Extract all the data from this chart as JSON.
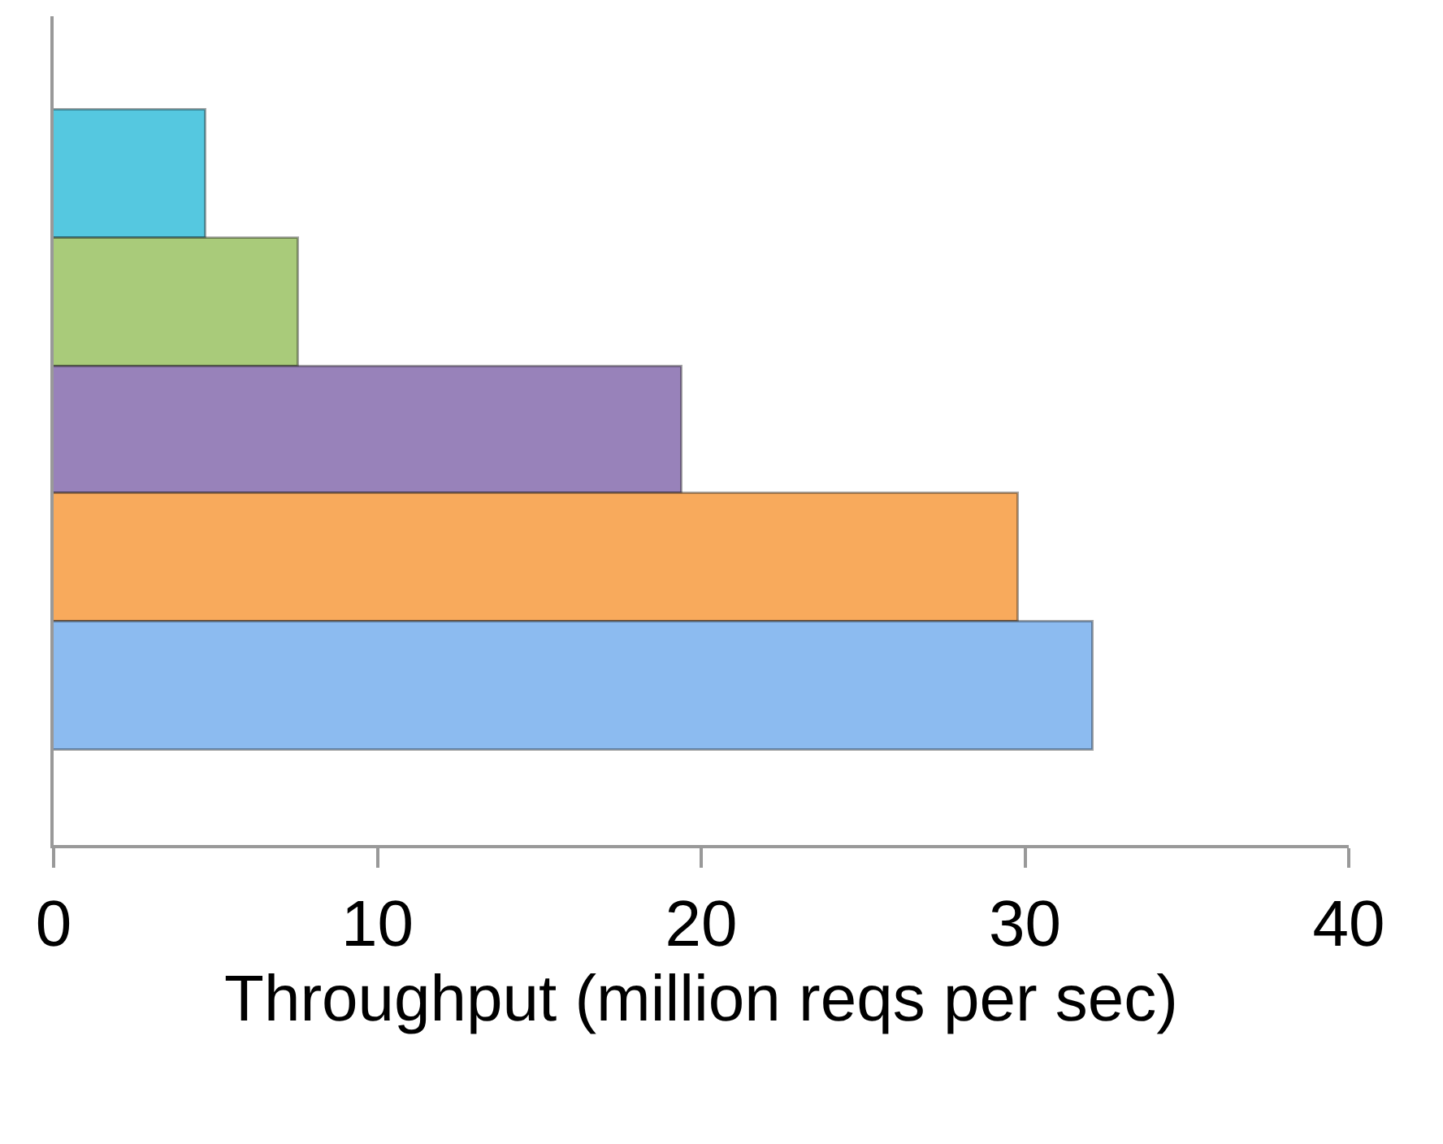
{
  "chart_data": {
    "type": "bar",
    "orientation": "horizontal",
    "categories": [
      null,
      null,
      null,
      null,
      null
    ],
    "values": [
      4.7,
      7.6,
      19.4,
      29.8,
      32.1
    ],
    "colors": [
      "#55c8e0",
      "#a9cb7a",
      "#9882ba",
      "#f8aa5c",
      "#8cbbf0"
    ],
    "xlim": [
      0,
      40
    ],
    "xticks": [
      0,
      10,
      20,
      30,
      40
    ],
    "xlabel": "Throughput (million reqs per sec)",
    "grid": false,
    "legend": false
  }
}
